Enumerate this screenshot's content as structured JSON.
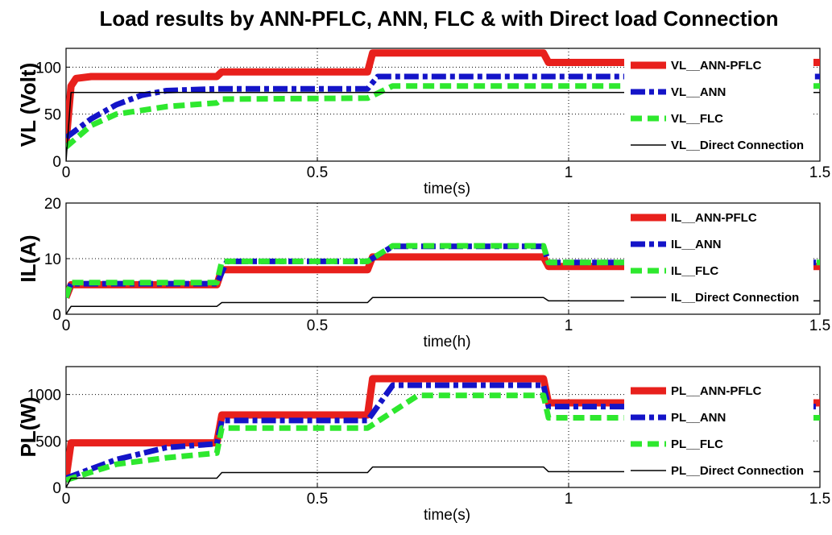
{
  "title": "Load results by ANN-PFLC, ANN, FLC & with Direct load Connection",
  "colors": {
    "ann_pflc": "#e8201c",
    "ann": "#1414c8",
    "flc": "#2ee82e",
    "direct": "#000000"
  },
  "chart_data": [
    {
      "type": "line",
      "ylabel": "VL (Volt)",
      "xlabel": "time(s)",
      "xlim": [
        0,
        1.5
      ],
      "ylim": [
        0,
        120
      ],
      "xticks": [
        "0",
        "0.5",
        "1",
        "1.5"
      ],
      "yticks": [
        "0",
        "50",
        "100"
      ],
      "grid": true,
      "legend_position": "right",
      "series": [
        {
          "name": "VL__ANN-PFLC",
          "x": [
            0,
            0.01,
            0.02,
            0.05,
            0.3,
            0.31,
            0.6,
            0.61,
            0.95,
            0.96,
            1.5
          ],
          "y": [
            20,
            80,
            88,
            90,
            90,
            95,
            95,
            115,
            115,
            105,
            105
          ]
        },
        {
          "name": "VL__ANN",
          "x": [
            0,
            0.05,
            0.1,
            0.15,
            0.2,
            0.3,
            0.6,
            0.62,
            1.5
          ],
          "y": [
            25,
            45,
            60,
            70,
            75,
            77,
            77,
            90,
            90
          ]
        },
        {
          "name": "VL__FLC",
          "x": [
            0,
            0.05,
            0.1,
            0.2,
            0.3,
            0.31,
            0.6,
            0.65,
            1.5
          ],
          "y": [
            15,
            38,
            50,
            58,
            62,
            66,
            67,
            80,
            80
          ]
        },
        {
          "name": "VL__Direct Connection",
          "x": [
            0,
            0.01,
            1.5
          ],
          "y": [
            0,
            73,
            73
          ]
        }
      ]
    },
    {
      "type": "line",
      "ylabel": "IL(A)",
      "xlabel": "time(h)",
      "xlim": [
        0,
        1.5
      ],
      "ylim": [
        0,
        20
      ],
      "xticks": [
        "0",
        "0.5",
        "1",
        "1.5"
      ],
      "yticks": [
        "0",
        "10",
        "20"
      ],
      "grid": true,
      "legend_position": "right",
      "series": [
        {
          "name": "IL__ANN-PFLC",
          "x": [
            0,
            0.01,
            0.3,
            0.31,
            0.6,
            0.61,
            0.95,
            0.96,
            1.5
          ],
          "y": [
            3,
            5.3,
            5.3,
            8,
            8,
            10.3,
            10.3,
            8.6,
            8.6
          ]
        },
        {
          "name": "IL__ANN",
          "x": [
            0,
            0.01,
            0.3,
            0.32,
            0.6,
            0.65,
            0.95,
            0.96,
            1.5
          ],
          "y": [
            3,
            5.5,
            5.5,
            9.5,
            9.5,
            12.2,
            12.2,
            9.3,
            9.3
          ]
        },
        {
          "name": "IL__FLC",
          "x": [
            0,
            0.01,
            0.3,
            0.31,
            0.6,
            0.65,
            0.95,
            0.96,
            1.5
          ],
          "y": [
            3,
            5.7,
            5.7,
            9.5,
            9.5,
            12.3,
            12.3,
            9.3,
            9.3
          ]
        },
        {
          "name": "IL__Direct Connection",
          "x": [
            0,
            0.01,
            0.3,
            0.31,
            0.6,
            0.61,
            0.95,
            0.96,
            1.5
          ],
          "y": [
            0,
            1.4,
            1.4,
            2.1,
            2.1,
            3,
            3,
            2.4,
            2.4
          ]
        }
      ]
    },
    {
      "type": "line",
      "ylabel": "PL(W)",
      "xlabel": "time(s)",
      "xlim": [
        0,
        1.5
      ],
      "ylim": [
        0,
        1300
      ],
      "xticks": [
        "0",
        "0.5",
        "1",
        "1.5"
      ],
      "yticks": [
        "0",
        "500",
        "1000"
      ],
      "grid": true,
      "legend_position": "right",
      "series": [
        {
          "name": "PL__ANN-PFLC",
          "x": [
            0,
            0.01,
            0.3,
            0.31,
            0.6,
            0.61,
            0.95,
            0.96,
            1.5
          ],
          "y": [
            100,
            480,
            480,
            780,
            780,
            1170,
            1170,
            910,
            910
          ]
        },
        {
          "name": "PL__ANN",
          "x": [
            0,
            0.1,
            0.2,
            0.3,
            0.31,
            0.6,
            0.65,
            0.95,
            0.96,
            1.5
          ],
          "y": [
            100,
            300,
            430,
            470,
            720,
            720,
            1100,
            1100,
            870,
            870
          ]
        },
        {
          "name": "PL__FLC",
          "x": [
            0,
            0.1,
            0.2,
            0.3,
            0.31,
            0.6,
            0.7,
            0.95,
            0.96,
            1.5
          ],
          "y": [
            80,
            250,
            320,
            370,
            640,
            640,
            990,
            990,
            750,
            750
          ]
        },
        {
          "name": "PL__Direct Connection",
          "x": [
            0,
            0.01,
            0.3,
            0.31,
            0.6,
            0.61,
            0.95,
            0.96,
            1.5
          ],
          "y": [
            0,
            100,
            100,
            160,
            160,
            220,
            220,
            170,
            170
          ]
        }
      ]
    }
  ]
}
